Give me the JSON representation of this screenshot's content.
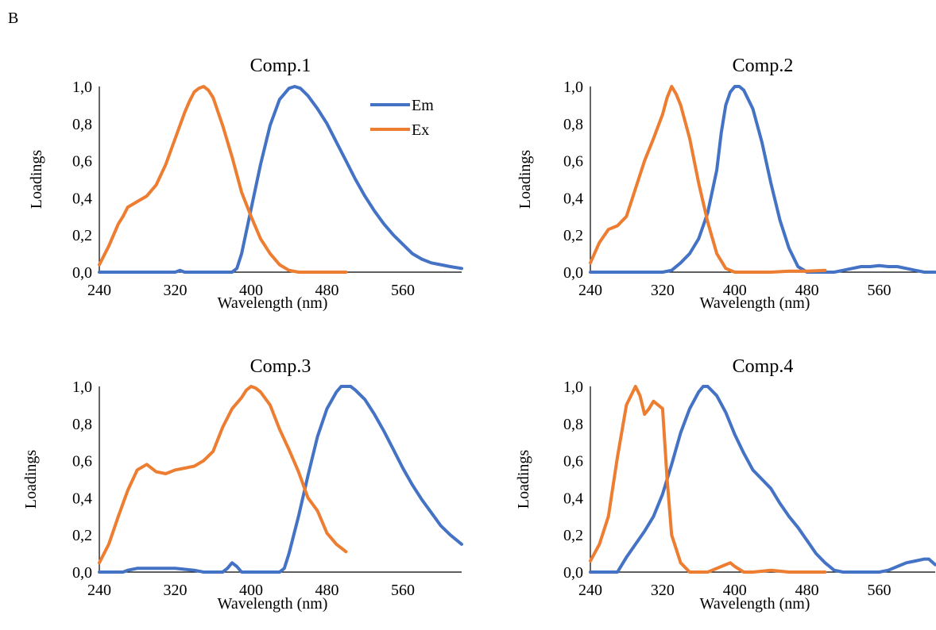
{
  "panel_label": "B",
  "colors": {
    "Em": "#4472C4",
    "Ex": "#ED7D31",
    "axis": "#000000"
  },
  "legend": {
    "placement": "top-right inside Comp.1",
    "entries": [
      "Em",
      "Ex"
    ]
  },
  "chart_data": [
    {
      "type": "line",
      "title": "Comp.1",
      "xlabel": "Wavelength (nm)",
      "ylabel": "Loadings",
      "xlim": [
        240,
        622
      ],
      "ylim": [
        0,
        1.0
      ],
      "xticks": [
        240,
        320,
        400,
        480,
        560
      ],
      "yticks": [
        "0,0",
        "0,2",
        "0,4",
        "0,6",
        "0,8",
        "1,0"
      ],
      "grid": false,
      "series": [
        {
          "name": "Em",
          "x": [
            240,
            260,
            280,
            300,
            320,
            325,
            330,
            340,
            360,
            380,
            385,
            390,
            400,
            410,
            420,
            430,
            440,
            446,
            452,
            460,
            470,
            480,
            490,
            500,
            510,
            520,
            530,
            540,
            550,
            560,
            570,
            580,
            590,
            600,
            610,
            622
          ],
          "y": [
            0,
            0,
            0,
            0,
            0,
            0.01,
            0,
            0,
            0,
            0,
            0.02,
            0.1,
            0.34,
            0.58,
            0.79,
            0.93,
            0.99,
            1.0,
            0.99,
            0.95,
            0.88,
            0.8,
            0.7,
            0.6,
            0.5,
            0.41,
            0.33,
            0.26,
            0.2,
            0.15,
            0.1,
            0.07,
            0.05,
            0.04,
            0.03,
            0.02
          ]
        },
        {
          "name": "Ex",
          "x": [
            240,
            250,
            260,
            265,
            270,
            280,
            290,
            300,
            310,
            320,
            330,
            335,
            340,
            345,
            350,
            355,
            360,
            370,
            380,
            390,
            400,
            410,
            420,
            430,
            440,
            450,
            460,
            470,
            480,
            490,
            500
          ],
          "y": [
            0.04,
            0.14,
            0.26,
            0.3,
            0.35,
            0.38,
            0.41,
            0.47,
            0.58,
            0.72,
            0.86,
            0.92,
            0.97,
            0.99,
            1.0,
            0.98,
            0.94,
            0.79,
            0.62,
            0.43,
            0.3,
            0.18,
            0.1,
            0.04,
            0.01,
            0,
            0,
            0,
            0,
            0,
            0
          ]
        }
      ]
    },
    {
      "type": "line",
      "title": "Comp.2",
      "xlabel": "Wavelength (nm)",
      "ylabel": "Loadings",
      "xlim": [
        240,
        622
      ],
      "ylim": [
        0,
        1.0
      ],
      "xticks": [
        240,
        320,
        400,
        480,
        560
      ],
      "yticks": [
        "0,0",
        "0,2",
        "0,4",
        "0,6",
        "0,8",
        "1,0"
      ],
      "grid": false,
      "series": [
        {
          "name": "Em",
          "x": [
            240,
            260,
            280,
            300,
            320,
            330,
            340,
            350,
            360,
            370,
            380,
            385,
            390,
            395,
            400,
            405,
            410,
            420,
            430,
            440,
            450,
            460,
            470,
            480,
            490,
            500,
            510,
            520,
            530,
            540,
            550,
            560,
            570,
            580,
            590,
            600,
            610,
            622
          ],
          "y": [
            0,
            0,
            0,
            0,
            0,
            0.01,
            0.05,
            0.1,
            0.18,
            0.32,
            0.55,
            0.75,
            0.9,
            0.97,
            1.0,
            1.0,
            0.98,
            0.88,
            0.7,
            0.48,
            0.28,
            0.13,
            0.03,
            0,
            0,
            0,
            0,
            0.01,
            0.02,
            0.03,
            0.03,
            0.035,
            0.03,
            0.03,
            0.02,
            0.01,
            0,
            0
          ]
        },
        {
          "name": "Ex",
          "x": [
            240,
            250,
            260,
            270,
            280,
            290,
            300,
            310,
            320,
            325,
            330,
            335,
            340,
            350,
            360,
            370,
            380,
            390,
            400,
            420,
            440,
            460,
            480,
            500
          ],
          "y": [
            0.05,
            0.16,
            0.23,
            0.25,
            0.3,
            0.45,
            0.6,
            0.72,
            0.85,
            0.94,
            1.0,
            0.96,
            0.9,
            0.72,
            0.48,
            0.27,
            0.1,
            0.02,
            0,
            0,
            0,
            0.005,
            0.005,
            0.01
          ]
        }
      ]
    },
    {
      "type": "line",
      "title": "Comp.3",
      "xlabel": "Wavelength (nm)",
      "ylabel": "Loadings",
      "xlim": [
        240,
        622
      ],
      "ylim": [
        0,
        1.0
      ],
      "xticks": [
        240,
        320,
        400,
        480,
        560
      ],
      "yticks": [
        "0,0",
        "0,2",
        "0,4",
        "0,6",
        "0,8",
        "1,0"
      ],
      "grid": false,
      "series": [
        {
          "name": "Em",
          "x": [
            240,
            250,
            265,
            270,
            280,
            300,
            320,
            330,
            340,
            350,
            360,
            370,
            375,
            380,
            385,
            390,
            400,
            420,
            430,
            435,
            440,
            450,
            460,
            470,
            480,
            490,
            495,
            500,
            505,
            510,
            520,
            530,
            540,
            550,
            560,
            570,
            580,
            590,
            600,
            610,
            622
          ],
          "y": [
            0,
            0,
            0,
            0.01,
            0.02,
            0.02,
            0.02,
            0.015,
            0.01,
            0,
            0,
            0,
            0.02,
            0.05,
            0.03,
            0,
            0,
            0,
            0,
            0.02,
            0.1,
            0.3,
            0.52,
            0.73,
            0.88,
            0.97,
            1.0,
            1.0,
            1.0,
            0.98,
            0.93,
            0.85,
            0.76,
            0.66,
            0.56,
            0.47,
            0.39,
            0.32,
            0.25,
            0.2,
            0.15
          ]
        },
        {
          "name": "Ex",
          "x": [
            240,
            250,
            260,
            270,
            280,
            290,
            300,
            310,
            320,
            330,
            340,
            350,
            360,
            370,
            380,
            390,
            395,
            400,
            405,
            410,
            420,
            430,
            440,
            450,
            460,
            470,
            480,
            490,
            500
          ],
          "y": [
            0.05,
            0.15,
            0.3,
            0.44,
            0.55,
            0.58,
            0.54,
            0.53,
            0.55,
            0.56,
            0.57,
            0.6,
            0.65,
            0.78,
            0.88,
            0.94,
            0.98,
            1.0,
            0.99,
            0.97,
            0.9,
            0.77,
            0.66,
            0.54,
            0.4,
            0.33,
            0.21,
            0.15,
            0.11
          ]
        }
      ]
    },
    {
      "type": "line",
      "title": "Comp.4",
      "xlabel": "Wavelength (nm)",
      "ylabel": "Loadings",
      "xlim": [
        240,
        622
      ],
      "ylim": [
        0,
        1.0
      ],
      "xticks": [
        240,
        320,
        400,
        480,
        560
      ],
      "yticks": [
        "0,0",
        "0,2",
        "0,4",
        "0,6",
        "0,8",
        "1,0"
      ],
      "grid": false,
      "series": [
        {
          "name": "Em",
          "x": [
            240,
            260,
            270,
            280,
            290,
            300,
            310,
            320,
            330,
            340,
            350,
            360,
            365,
            370,
            380,
            390,
            400,
            410,
            420,
            430,
            440,
            450,
            460,
            470,
            480,
            490,
            500,
            510,
            520,
            530,
            540,
            550,
            560,
            570,
            580,
            590,
            600,
            610,
            615,
            622
          ],
          "y": [
            0,
            0,
            0,
            0.08,
            0.15,
            0.22,
            0.3,
            0.42,
            0.58,
            0.75,
            0.88,
            0.97,
            1.0,
            1.0,
            0.95,
            0.86,
            0.74,
            0.64,
            0.55,
            0.5,
            0.45,
            0.37,
            0.3,
            0.24,
            0.17,
            0.1,
            0.05,
            0.01,
            0,
            0,
            0,
            0,
            0,
            0.01,
            0.03,
            0.05,
            0.06,
            0.07,
            0.07,
            0.04
          ]
        },
        {
          "name": "Ex",
          "x": [
            240,
            250,
            260,
            270,
            280,
            290,
            295,
            300,
            305,
            310,
            320,
            325,
            330,
            340,
            350,
            360,
            370,
            380,
            390,
            395,
            400,
            410,
            420,
            440,
            460,
            480,
            500
          ],
          "y": [
            0.06,
            0.15,
            0.3,
            0.62,
            0.9,
            1.0,
            0.95,
            0.85,
            0.88,
            0.92,
            0.88,
            0.5,
            0.2,
            0.05,
            0,
            0,
            0,
            0.02,
            0.04,
            0.05,
            0.03,
            0,
            0,
            0.01,
            0,
            0,
            0
          ]
        }
      ]
    }
  ]
}
